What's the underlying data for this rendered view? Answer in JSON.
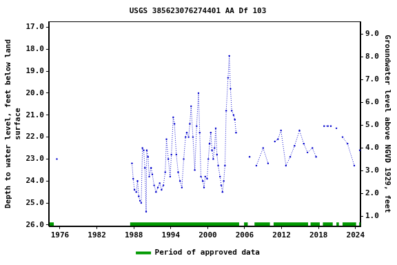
{
  "chart_data": {
    "type": "line",
    "title": "USGS 385623076274401 AA Df 103",
    "y_label": [
      "Depth to water level, feet below land",
      "surface"
    ],
    "y2_label": "Groundwater level above NGVD 1929, feet",
    "xlim": [
      1974.2,
      2024.8
    ],
    "xticks": [
      1976,
      1982,
      1988,
      1994,
      2000,
      2006,
      2012,
      2018,
      2024
    ],
    "ylim": [
      26.06,
      16.74
    ],
    "yticks": [
      {
        "value": 17,
        "label": "17.0"
      },
      {
        "value": 18,
        "label": "18.0"
      },
      {
        "value": 19,
        "label": "19.0"
      },
      {
        "value": 20,
        "label": "20.0"
      },
      {
        "value": 21,
        "label": "21.0"
      },
      {
        "value": 22,
        "label": "22.0"
      },
      {
        "value": 23,
        "label": "23.0"
      },
      {
        "value": 24,
        "label": "24.0"
      },
      {
        "value": 25,
        "label": "25.0"
      },
      {
        "value": 26,
        "label": "26.0"
      }
    ],
    "y2lim": [
      0.57,
      9.55
    ],
    "y2ticks": [
      {
        "value": 1,
        "label": "1.0"
      },
      {
        "value": 2,
        "label": "2.0"
      },
      {
        "value": 3,
        "label": "3.0"
      },
      {
        "value": 4,
        "label": "4.0"
      },
      {
        "value": 5,
        "label": "5.0"
      },
      {
        "value": 6,
        "label": "6.0"
      },
      {
        "value": 7,
        "label": "7.0"
      },
      {
        "value": 8,
        "label": "8.0"
      },
      {
        "value": 9,
        "label": "9.0"
      }
    ],
    "grid": false,
    "legend": "bottom",
    "x": [
      1975.5,
      null,
      1987.7,
      1987.9,
      1988.1,
      1988.4,
      1988.6,
      1988.8,
      1989.0,
      1989.2,
      1989.4,
      1989.6,
      1989.8,
      1990.0,
      1990.1,
      1990.3,
      1990.5,
      1990.8,
      1991.0,
      1991.3,
      1991.6,
      1991.9,
      1992.2,
      1992.5,
      1992.8,
      1993.1,
      1993.3,
      1993.6,
      1993.9,
      1994.1,
      1994.4,
      1994.6,
      1994.9,
      1995.2,
      1995.5,
      1995.8,
      1996.1,
      1996.4,
      1996.6,
      1996.9,
      1997.1,
      1997.3,
      1997.6,
      1997.9,
      1998.2,
      1998.5,
      1998.7,
      1998.9,
      1999.2,
      1999.4,
      1999.6,
      1999.9,
      2000.1,
      2000.3,
      2000.5,
      2000.7,
      2000.9,
      2001.1,
      2001.3,
      2001.5,
      2001.7,
      2002.0,
      2002.2,
      2002.4,
      2002.6,
      2002.8,
      2003.0,
      2003.3,
      2003.5,
      2003.7,
      2003.9,
      2004.2,
      2004.4,
      2004.6,
      null,
      2006.8,
      null,
      2007.9,
      2009.0,
      2009.8,
      null,
      2010.9,
      2011.4,
      2011.9,
      2012.7,
      2013.4,
      2014.1,
      2014.9,
      2015.6,
      2016.2,
      2017.0,
      2017.6,
      null,
      2018.9,
      2019.5,
      2020.0,
      null,
      2020.9,
      null,
      2021.9,
      2022.7,
      2023.8,
      null,
      2024.7
    ],
    "series": [
      {
        "color": "#0000cc",
        "marker": "circle",
        "line_style": "dotted",
        "values": [
          23.0,
          null,
          23.2,
          23.9,
          24.4,
          24.5,
          24.0,
          24.7,
          24.9,
          25.0,
          22.5,
          22.6,
          23.4,
          25.4,
          22.6,
          22.9,
          23.8,
          23.4,
          23.7,
          24.2,
          24.5,
          24.3,
          24.1,
          24.4,
          24.2,
          23.6,
          22.1,
          23.0,
          23.8,
          22.8,
          21.1,
          21.4,
          22.8,
          23.6,
          24.0,
          24.3,
          23.0,
          22.0,
          21.8,
          22.0,
          21.4,
          20.6,
          22.0,
          23.5,
          21.5,
          20.0,
          21.8,
          23.8,
          24.0,
          24.3,
          23.8,
          23.9,
          23.0,
          22.3,
          21.8,
          22.6,
          23.0,
          22.5,
          21.6,
          22.8,
          23.3,
          23.8,
          24.2,
          24.5,
          24.0,
          23.3,
          20.8,
          19.3,
          18.3,
          19.8,
          20.8,
          21.0,
          21.2,
          21.8,
          null,
          22.9,
          null,
          23.3,
          22.5,
          23.2,
          null,
          22.2,
          22.1,
          21.7,
          23.3,
          22.9,
          22.4,
          21.7,
          22.3,
          22.7,
          22.5,
          22.9,
          null,
          21.5,
          21.5,
          21.5,
          null,
          21.6,
          null,
          22.0,
          22.3,
          23.3,
          null,
          22.6
        ]
      }
    ],
    "approved_periods": {
      "name": "Period of approved data",
      "color": "#009900",
      "periods": [
        [
          1974.3,
          1975.0
        ],
        [
          1987.4,
          2005.1
        ],
        [
          2005.9,
          2006.5
        ],
        [
          2007.6,
          2010.1
        ],
        [
          2010.7,
          2016.3
        ],
        [
          2016.7,
          2018.2
        ],
        [
          2018.7,
          2020.3
        ],
        [
          2020.9,
          2021.3
        ],
        [
          2021.9,
          2024.1
        ],
        [
          2024.6,
          2024.8
        ]
      ]
    }
  }
}
